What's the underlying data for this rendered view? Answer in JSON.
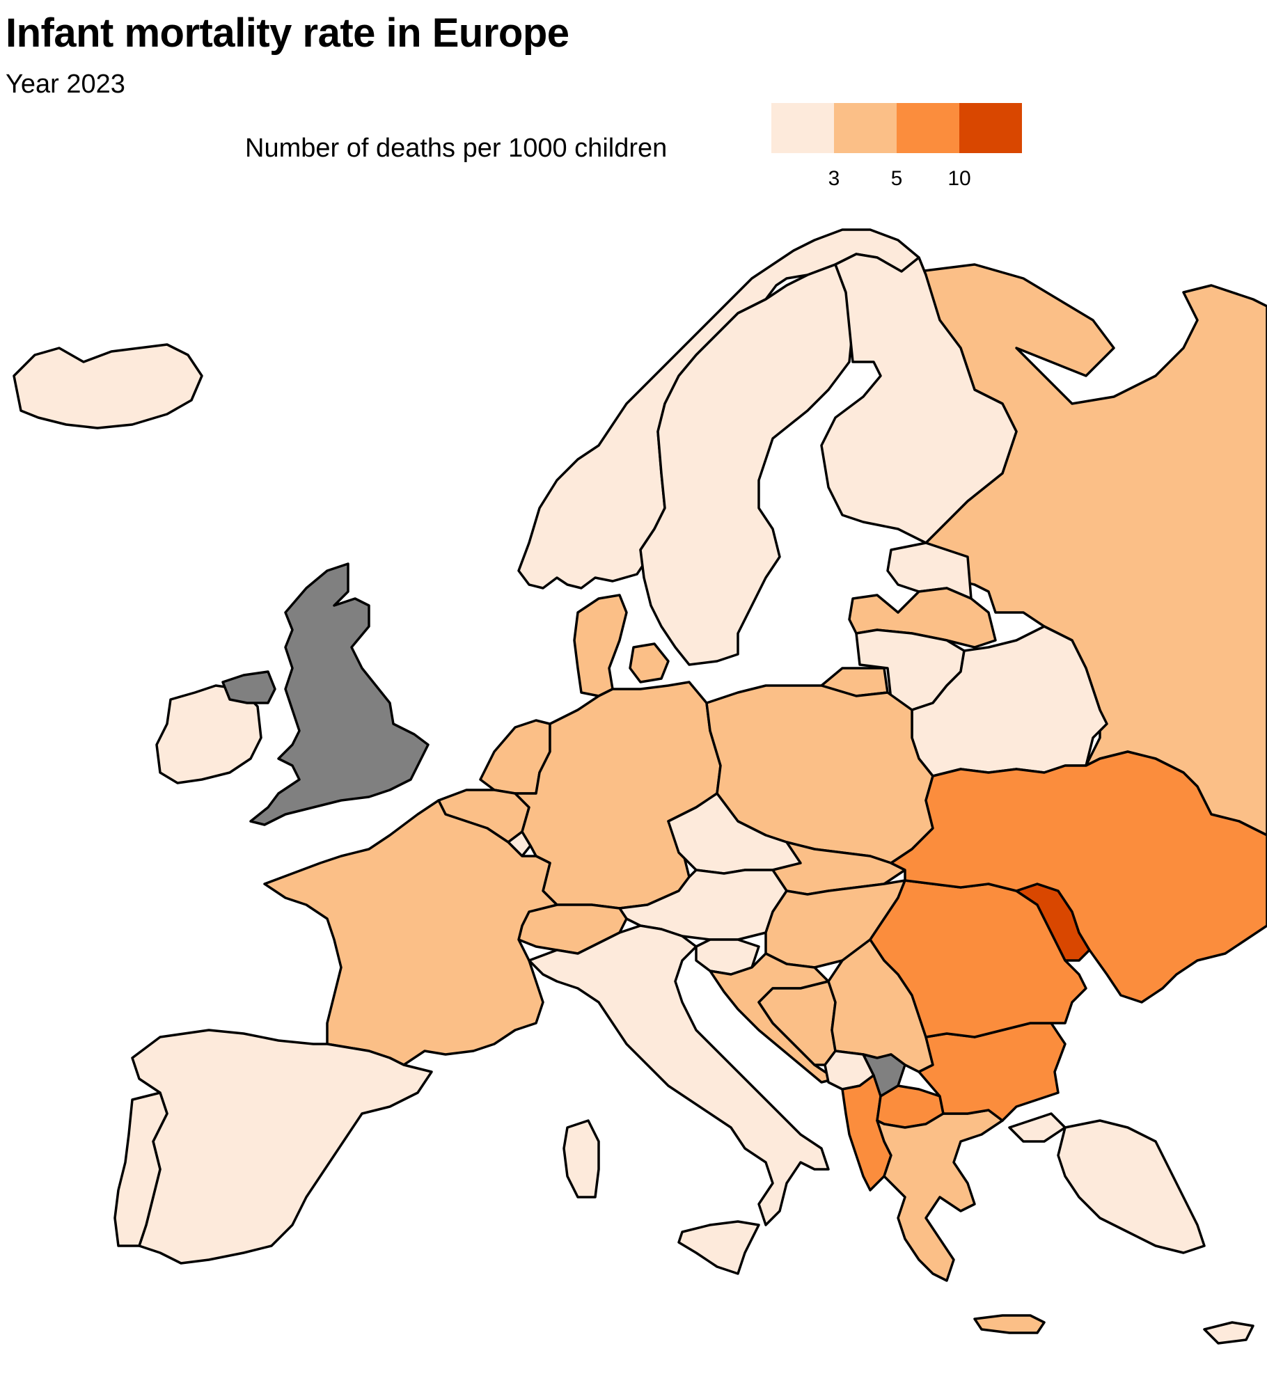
{
  "title": "Infant mortality rate in Europe",
  "subtitle": "Year 2023",
  "legend": {
    "title": "Number of deaths per 1000 children",
    "bins": [
      {
        "color": "#fdeadb"
      },
      {
        "color": "#fbbf87"
      },
      {
        "color": "#fb8d3d"
      },
      {
        "color": "#d94700"
      }
    ],
    "breaks": [
      "3",
      "5",
      "10"
    ]
  },
  "colors": {
    "no_data": "#808080",
    "border": "#000000"
  },
  "countries": [
    {
      "name": "Iceland",
      "bin": 0
    },
    {
      "name": "Norway",
      "bin": 0
    },
    {
      "name": "Sweden",
      "bin": 0
    },
    {
      "name": "Finland",
      "bin": 0
    },
    {
      "name": "Russia",
      "bin": 1
    },
    {
      "name": "Estonia",
      "bin": 0
    },
    {
      "name": "Latvia",
      "bin": 1
    },
    {
      "name": "Lithuania",
      "bin": 0
    },
    {
      "name": "Belarus",
      "bin": 0
    },
    {
      "name": "Denmark",
      "bin": 1
    },
    {
      "name": "United Kingdom",
      "bin": null
    },
    {
      "name": "Ireland",
      "bin": 0
    },
    {
      "name": "Netherlands",
      "bin": 1
    },
    {
      "name": "Belgium",
      "bin": 1
    },
    {
      "name": "Luxembourg",
      "bin": 0
    },
    {
      "name": "Germany",
      "bin": 1
    },
    {
      "name": "Poland",
      "bin": 1
    },
    {
      "name": "Czechia",
      "bin": 0
    },
    {
      "name": "Slovakia",
      "bin": 1
    },
    {
      "name": "Austria",
      "bin": 0
    },
    {
      "name": "Hungary",
      "bin": 1
    },
    {
      "name": "Switzerland",
      "bin": 1
    },
    {
      "name": "France",
      "bin": 1
    },
    {
      "name": "Spain",
      "bin": 0
    },
    {
      "name": "Portugal",
      "bin": 0
    },
    {
      "name": "Italy",
      "bin": 0
    },
    {
      "name": "Slovenia",
      "bin": 0
    },
    {
      "name": "Croatia",
      "bin": 1
    },
    {
      "name": "Bosnia and Herzegovina",
      "bin": 1
    },
    {
      "name": "Serbia",
      "bin": 1
    },
    {
      "name": "Montenegro",
      "bin": 0
    },
    {
      "name": "Kosovo",
      "bin": null
    },
    {
      "name": "Albania",
      "bin": 2
    },
    {
      "name": "North Macedonia",
      "bin": 2
    },
    {
      "name": "Greece",
      "bin": 1
    },
    {
      "name": "Bulgaria",
      "bin": 2
    },
    {
      "name": "Romania",
      "bin": 2
    },
    {
      "name": "Moldova",
      "bin": 3
    },
    {
      "name": "Ukraine",
      "bin": 2
    },
    {
      "name": "Turkey",
      "bin": 0
    },
    {
      "name": "Cyprus",
      "bin": 0
    }
  ]
}
